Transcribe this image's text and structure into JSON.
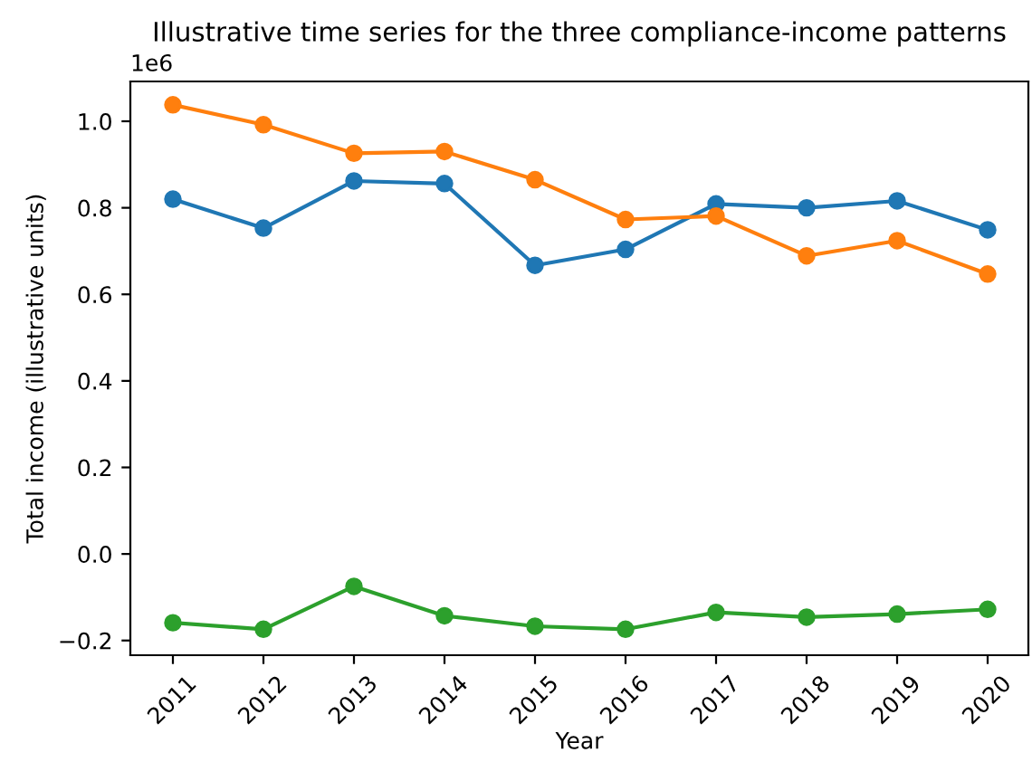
{
  "chart_data": {
    "type": "line",
    "title": "Illustrative time series for the three compliance-income patterns",
    "xlabel": "Year",
    "ylabel": "Total income (illustrative units)",
    "categories": [
      "2011",
      "2012",
      "2013",
      "2014",
      "2015",
      "2016",
      "2017",
      "2018",
      "2019",
      "2020"
    ],
    "series": [
      {
        "color": "#1f77b4",
        "values": [
          0.82,
          0.753,
          0.862,
          0.856,
          0.667,
          0.704,
          0.809,
          0.8,
          0.816,
          0.749
        ]
      },
      {
        "color": "#ff7f0e",
        "values": [
          1.038,
          0.992,
          0.926,
          0.93,
          0.865,
          0.773,
          0.781,
          0.689,
          0.724,
          0.647
        ]
      },
      {
        "color": "#2ca02c",
        "values": [
          -0.159,
          -0.174,
          -0.075,
          -0.143,
          -0.167,
          -0.174,
          -0.135,
          -0.146,
          -0.139,
          -0.128
        ]
      }
    ],
    "ylim": [
      -0.234,
      1.092
    ],
    "yticks": [
      {
        "value": -0.2,
        "label": "−0.2"
      },
      {
        "value": 0,
        "label": "0.0"
      },
      {
        "value": 0.2,
        "label": "0.2"
      },
      {
        "value": 0.4,
        "label": "0.4"
      },
      {
        "value": 0.6,
        "label": "0.6"
      },
      {
        "value": 0.8,
        "label": "0.8"
      },
      {
        "value": 1.0,
        "label": "1.0"
      }
    ],
    "annotations": [
      "1e6"
    ],
    "marker": "circle",
    "line_style": "solid",
    "grid": false,
    "legend": false
  }
}
